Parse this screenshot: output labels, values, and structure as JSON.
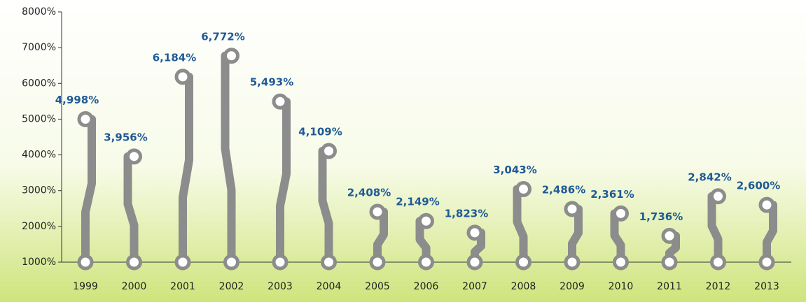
{
  "chart_data": {
    "type": "lollipop",
    "categories": [
      "1999",
      "2000",
      "2001",
      "2002",
      "2003",
      "2004",
      "2005",
      "2006",
      "2007",
      "2008",
      "2009",
      "2010",
      "2011",
      "2012",
      "2013"
    ],
    "values": [
      4998,
      3956,
      6184,
      6772,
      5493,
      4109,
      2408,
      2149,
      1823,
      3043,
      2486,
      2361,
      1736,
      2842,
      2600
    ],
    "value_labels": [
      "4,998%",
      "3,956%",
      "6,184%",
      "6,772%",
      "5,493%",
      "4,109%",
      "2,408%",
      "2,149%",
      "1,823%",
      "3,043%",
      "2,486%",
      "2,361%",
      "1,736%",
      "2,842%",
      "2,600%"
    ],
    "color": "#8c8c8c",
    "label_color": "#1f5a96",
    "ylim": [
      1000,
      8000
    ],
    "yticks": [
      {
        "value": 1000,
        "label": "1000%"
      },
      {
        "value": 2000,
        "label": "2000%"
      },
      {
        "value": 3000,
        "label": "3000%"
      },
      {
        "value": 4000,
        "label": "4000%"
      },
      {
        "value": 5000,
        "label": "5000%"
      },
      {
        "value": 6000,
        "label": "6000%"
      },
      {
        "value": 7000,
        "label": "7000%"
      },
      {
        "value": 8000,
        "label": "8000%"
      }
    ]
  }
}
